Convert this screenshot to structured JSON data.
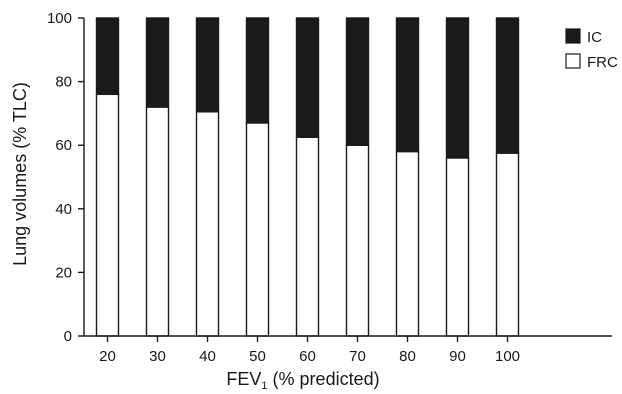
{
  "chart_data": {
    "type": "bar",
    "stacked": true,
    "categories": [
      "20",
      "30",
      "40",
      "50",
      "60",
      "70",
      "80",
      "90",
      "100"
    ],
    "series": [
      {
        "name": "FRC",
        "values": [
          76,
          72,
          70.5,
          67,
          62.5,
          60,
          58,
          56,
          57.5
        ],
        "color": "#ffffff"
      },
      {
        "name": "IC",
        "values": [
          24,
          28,
          29.5,
          33,
          37.5,
          40,
          42,
          44,
          42.5
        ],
        "color": "#1a1a1a"
      }
    ],
    "xlabel": {
      "main": "FEV",
      "sub": "1",
      "rest": " (% predicted)"
    },
    "ylabel": "Lung volumes (% TLC)",
    "ylim": [
      0,
      100
    ],
    "yticks": [
      "0",
      "20",
      "40",
      "60",
      "80",
      "100"
    ],
    "legend": {
      "position": "top-right",
      "items": [
        {
          "name": "IC",
          "color": "#1a1a1a"
        },
        {
          "name": "FRC",
          "color": "#ffffff"
        }
      ]
    },
    "grid": false
  }
}
